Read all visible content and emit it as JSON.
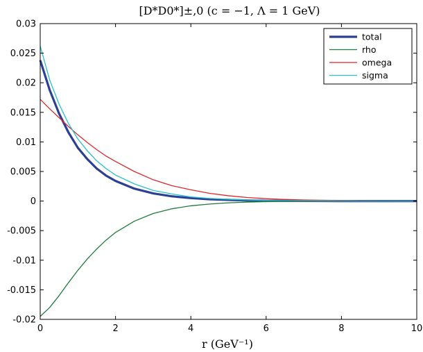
{
  "chart_data": {
    "type": "line",
    "title": "[D*D0*]±,0 (c = −1, Λ = 1 GeV)",
    "xlabel": "r (GeV⁻¹)",
    "ylabel": "",
    "xlim": [
      0,
      10
    ],
    "ylim": [
      -0.02,
      0.03
    ],
    "xticks": [
      0,
      2,
      4,
      6,
      8,
      10
    ],
    "xtick_labels": [
      "0",
      "2",
      "4",
      "6",
      "8",
      "10"
    ],
    "yticks": [
      -0.02,
      -0.015,
      -0.01,
      -0.005,
      0,
      0.005,
      0.01,
      0.015,
      0.02,
      0.025,
      0.03
    ],
    "ytick_labels": [
      "-0.02",
      "-0.015",
      "-0.01",
      "-0.005",
      "0",
      "0.005",
      "0.01",
      "0.015",
      "0.02",
      "0.025",
      "0.03"
    ],
    "grid": false,
    "legend_position": "top-right",
    "x": [
      0,
      0.25,
      0.5,
      0.75,
      1,
      1.25,
      1.5,
      1.75,
      2,
      2.5,
      3,
      3.5,
      4,
      4.5,
      5,
      5.5,
      6,
      6.5,
      7,
      7.5,
      8,
      8.5,
      9,
      9.5,
      10
    ],
    "series": [
      {
        "name": "total",
        "color": "#2b3f93",
        "width": 3.2,
        "values": [
          0.0238,
          0.0188,
          0.0148,
          0.0116,
          0.009,
          0.0071,
          0.0055,
          0.0043,
          0.0034,
          0.0021,
          0.0013,
          0.0008,
          0.0005,
          0.0003,
          0.0002,
          0.0001,
          5e-05,
          3e-05,
          2e-05,
          1e-05,
          0.0,
          0.0,
          0.0,
          0.0,
          0.0
        ]
      },
      {
        "name": "rho",
        "color": "#1f7a3a",
        "width": 1.3,
        "values": [
          -0.0195,
          -0.018,
          -0.016,
          -0.0138,
          -0.0117,
          -0.0098,
          -0.0081,
          -0.0066,
          -0.0053,
          -0.0034,
          -0.0021,
          -0.0013,
          -0.0008,
          -0.0005,
          -0.0003,
          -0.00018,
          -0.0001,
          -6e-05,
          -3e-05,
          -2e-05,
          -1e-05,
          0.0,
          0.0,
          0.0,
          0.0
        ]
      },
      {
        "name": "omega",
        "color": "#e0262b",
        "width": 1.3,
        "values": [
          0.0172,
          0.0156,
          0.0141,
          0.0126,
          0.0112,
          0.0099,
          0.0087,
          0.0076,
          0.0067,
          0.005,
          0.0036,
          0.0026,
          0.0019,
          0.0013,
          0.0009,
          0.0006,
          0.0004,
          0.00027,
          0.00018,
          0.00012,
          8e-05,
          5e-05,
          3e-05,
          2e-05,
          1e-05
        ]
      },
      {
        "name": "sigma",
        "color": "#25c0c8",
        "width": 1.3,
        "values": [
          0.0262,
          0.0205,
          0.0164,
          0.0131,
          0.0105,
          0.0085,
          0.0068,
          0.0055,
          0.0044,
          0.0029,
          0.0018,
          0.0012,
          0.0007,
          0.00045,
          0.0003,
          0.00018,
          0.0001,
          6e-05,
          4e-05,
          2e-05,
          1e-05,
          0.0,
          0.0,
          0.0,
          0.0
        ]
      }
    ]
  }
}
